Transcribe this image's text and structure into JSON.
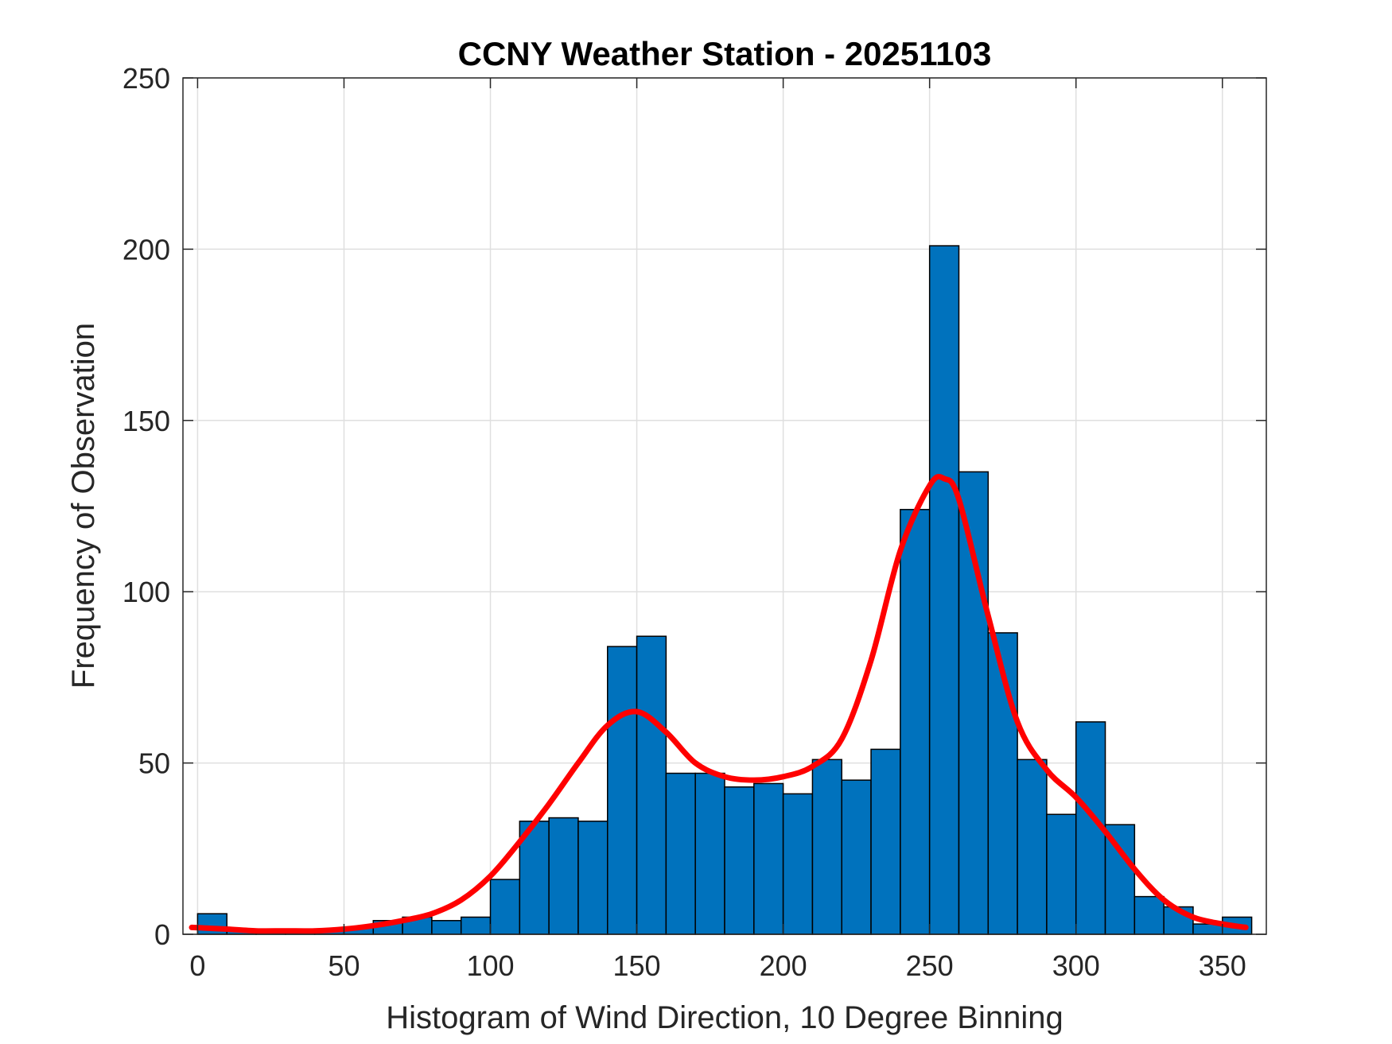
{
  "chart_data": {
    "type": "bar",
    "title": "CCNY Weather Station - 20251103",
    "xlabel": "Histogram of Wind Direction, 10 Degree Binning",
    "ylabel": "Frequency of Observation",
    "xlim": [
      -5,
      365
    ],
    "ylim": [
      0,
      250
    ],
    "xticks": [
      0,
      50,
      100,
      150,
      200,
      250,
      300,
      350
    ],
    "yticks": [
      0,
      50,
      100,
      150,
      200,
      250
    ],
    "grid": true,
    "bin_width": 10,
    "bar_color": "#0072BD",
    "bar_edge_color": "#000000",
    "fit_color": "#FF0000",
    "bins": [
      {
        "start": 0,
        "count": 6
      },
      {
        "start": 10,
        "count": 1
      },
      {
        "start": 20,
        "count": 1
      },
      {
        "start": 30,
        "count": 1
      },
      {
        "start": 40,
        "count": 1
      },
      {
        "start": 50,
        "count": 2
      },
      {
        "start": 60,
        "count": 4
      },
      {
        "start": 70,
        "count": 5
      },
      {
        "start": 80,
        "count": 4
      },
      {
        "start": 90,
        "count": 5
      },
      {
        "start": 100,
        "count": 16
      },
      {
        "start": 110,
        "count": 33
      },
      {
        "start": 120,
        "count": 34
      },
      {
        "start": 130,
        "count": 33
      },
      {
        "start": 140,
        "count": 84
      },
      {
        "start": 150,
        "count": 87
      },
      {
        "start": 160,
        "count": 47
      },
      {
        "start": 170,
        "count": 47
      },
      {
        "start": 180,
        "count": 43
      },
      {
        "start": 190,
        "count": 44
      },
      {
        "start": 200,
        "count": 41
      },
      {
        "start": 210,
        "count": 51
      },
      {
        "start": 220,
        "count": 45
      },
      {
        "start": 230,
        "count": 54
      },
      {
        "start": 240,
        "count": 124
      },
      {
        "start": 250,
        "count": 201
      },
      {
        "start": 260,
        "count": 135
      },
      {
        "start": 270,
        "count": 88
      },
      {
        "start": 280,
        "count": 51
      },
      {
        "start": 290,
        "count": 35
      },
      {
        "start": 300,
        "count": 62
      },
      {
        "start": 310,
        "count": 32
      },
      {
        "start": 320,
        "count": 11
      },
      {
        "start": 330,
        "count": 8
      },
      {
        "start": 340,
        "count": 3
      },
      {
        "start": 350,
        "count": 5
      }
    ],
    "fit_curve": {
      "x": [
        -2,
        10,
        20,
        30,
        40,
        50,
        60,
        70,
        80,
        90,
        100,
        110,
        120,
        130,
        140,
        150,
        160,
        170,
        180,
        190,
        200,
        210,
        220,
        230,
        240,
        250,
        255,
        260,
        270,
        280,
        290,
        300,
        310,
        320,
        330,
        340,
        350,
        358
      ],
      "y": [
        2,
        1.5,
        1,
        1,
        1,
        1.5,
        2.5,
        4,
        6,
        10,
        17,
        27,
        38,
        50,
        61,
        65,
        59,
        50,
        46,
        45,
        46,
        49,
        57,
        80,
        112,
        131,
        133,
        127,
        93,
        62,
        48,
        40,
        30,
        19,
        10,
        5,
        3,
        2
      ]
    }
  }
}
